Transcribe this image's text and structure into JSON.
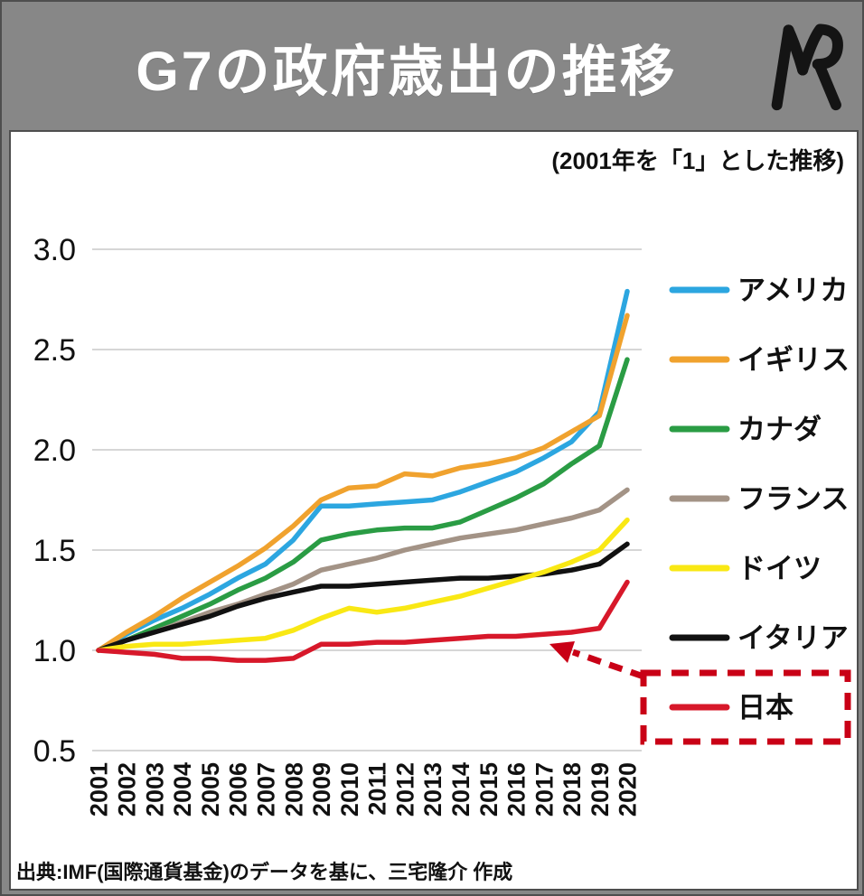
{
  "header": {
    "title": "G7の政府歳出の推移",
    "logo_icon": "mr-monogram"
  },
  "source": "出典:IMF(国際通貨基金)のデータを基に、三宅隆介 作成",
  "chart_data": {
    "type": "line",
    "title": "G7の政府歳出の推移",
    "subtitle": "(2001年を「1」とした推移)",
    "xlabel": "",
    "ylabel": "",
    "ylim": [
      0.5,
      3.0
    ],
    "yticks": [
      0.5,
      1.0,
      1.5,
      2.0,
      2.5,
      3.0
    ],
    "grid": true,
    "legend_position": "right",
    "categories": [
      "2001",
      "2002",
      "2003",
      "2004",
      "2005",
      "2006",
      "2007",
      "2008",
      "2009",
      "2010",
      "2011",
      "2012",
      "2013",
      "2014",
      "2015",
      "2016",
      "2017",
      "2018",
      "2019",
      "2020"
    ],
    "series": [
      {
        "name": "アメリカ",
        "color": "#2CA6E0",
        "values": [
          1.0,
          1.08,
          1.15,
          1.21,
          1.28,
          1.36,
          1.43,
          1.55,
          1.72,
          1.72,
          1.73,
          1.74,
          1.75,
          1.79,
          1.84,
          1.89,
          1.96,
          2.04,
          2.19,
          2.79
        ]
      },
      {
        "name": "イギリス",
        "color": "#F0A22E",
        "values": [
          1.0,
          1.09,
          1.17,
          1.26,
          1.34,
          1.42,
          1.51,
          1.62,
          1.75,
          1.81,
          1.82,
          1.88,
          1.87,
          1.91,
          1.93,
          1.96,
          2.01,
          2.09,
          2.17,
          2.67
        ]
      },
      {
        "name": "カナダ",
        "color": "#2A9C44",
        "values": [
          1.0,
          1.05,
          1.11,
          1.17,
          1.23,
          1.3,
          1.36,
          1.44,
          1.55,
          1.58,
          1.6,
          1.61,
          1.61,
          1.64,
          1.7,
          1.76,
          1.83,
          1.93,
          2.02,
          2.45
        ]
      },
      {
        "name": "フランス",
        "color": "#A39386",
        "values": [
          1.0,
          1.05,
          1.09,
          1.14,
          1.19,
          1.23,
          1.28,
          1.33,
          1.4,
          1.43,
          1.46,
          1.5,
          1.53,
          1.56,
          1.58,
          1.6,
          1.63,
          1.66,
          1.7,
          1.8
        ]
      },
      {
        "name": "ドイツ",
        "color": "#F9E814",
        "values": [
          1.0,
          1.02,
          1.03,
          1.03,
          1.04,
          1.05,
          1.06,
          1.1,
          1.16,
          1.21,
          1.19,
          1.21,
          1.24,
          1.27,
          1.31,
          1.35,
          1.39,
          1.44,
          1.5,
          1.65
        ]
      },
      {
        "name": "イタリア",
        "color": "#111111",
        "values": [
          1.0,
          1.05,
          1.09,
          1.13,
          1.17,
          1.22,
          1.26,
          1.29,
          1.32,
          1.32,
          1.33,
          1.34,
          1.35,
          1.36,
          1.36,
          1.37,
          1.38,
          1.4,
          1.43,
          1.53
        ]
      },
      {
        "name": "日本",
        "color": "#D7182A",
        "values": [
          1.0,
          0.99,
          0.98,
          0.96,
          0.96,
          0.95,
          0.95,
          0.96,
          1.03,
          1.03,
          1.04,
          1.04,
          1.05,
          1.06,
          1.07,
          1.07,
          1.08,
          1.09,
          1.11,
          1.34
        ]
      }
    ],
    "annotations": {
      "highlighted_series": "日本",
      "highlight_style": "red dashed box around 日本 legend entry",
      "arrow": "red dashed arrow from 日本 legend box to the 日本 line",
      "highlight_color": "#C90016"
    }
  }
}
